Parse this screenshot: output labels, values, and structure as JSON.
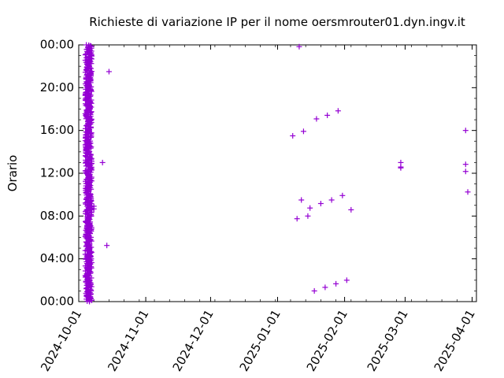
{
  "chart_data": {
    "type": "scatter",
    "title": "Richieste di variazione IP per il nome oersmrouter01.dyn.ingv.it",
    "xlabel": "",
    "ylabel": "Orario",
    "x_type": "date",
    "xlim": [
      "2024-10-01",
      "2025-04-03"
    ],
    "ylim": [
      "00:00",
      "24:00"
    ],
    "x_ticks": [
      "2024-10-01",
      "2024-11-01",
      "2024-12-01",
      "2025-01-01",
      "2025-02-01",
      "2025-03-01",
      "2025-04-01"
    ],
    "y_ticks": [
      "00:00",
      "04:00",
      "08:00",
      "12:00",
      "16:00",
      "20:00",
      "00:00"
    ],
    "marker": "+",
    "color": "#9400d3",
    "grid": false,
    "legend": "none",
    "series": [
      {
        "values": [
          {
            "x": "2024-10-07",
            "y": "08:40"
          },
          {
            "x": "2024-10-07",
            "y": "08:55"
          },
          {
            "x": "2024-10-07",
            "y": "12:55"
          },
          {
            "x": "2024-10-08",
            "y": "08:40"
          },
          {
            "x": "2024-10-08",
            "y": "08:55"
          },
          {
            "x": "2024-10-12",
            "y": "13:00"
          },
          {
            "x": "2024-10-14",
            "y": "05:15"
          },
          {
            "x": "2024-10-15",
            "y": "21:30"
          },
          {
            "x": "2025-01-08",
            "y": "15:30"
          },
          {
            "x": "2025-01-10",
            "y": "07:45"
          },
          {
            "x": "2025-01-11",
            "y": "23:50"
          },
          {
            "x": "2025-01-12",
            "y": "09:30"
          },
          {
            "x": "2025-01-13",
            "y": "15:55"
          },
          {
            "x": "2025-01-15",
            "y": "08:00"
          },
          {
            "x": "2025-01-16",
            "y": "08:45"
          },
          {
            "x": "2025-01-18",
            "y": "01:00"
          },
          {
            "x": "2025-01-19",
            "y": "17:05"
          },
          {
            "x": "2025-01-21",
            "y": "09:10"
          },
          {
            "x": "2025-01-23",
            "y": "01:20"
          },
          {
            "x": "2025-01-24",
            "y": "17:25"
          },
          {
            "x": "2025-01-26",
            "y": "09:30"
          },
          {
            "x": "2025-01-28",
            "y": "01:40"
          },
          {
            "x": "2025-01-29",
            "y": "17:50"
          },
          {
            "x": "2025-01-31",
            "y": "09:55"
          },
          {
            "x": "2025-02-02",
            "y": "02:00"
          },
          {
            "x": "2025-02-04",
            "y": "08:35"
          },
          {
            "x": "2025-02-27",
            "y": "12:30"
          },
          {
            "x": "2025-02-27",
            "y": "12:35"
          },
          {
            "x": "2025-02-27",
            "y": "13:00"
          },
          {
            "x": "2025-03-29",
            "y": "16:00"
          },
          {
            "x": "2025-03-29",
            "y": "12:50"
          },
          {
            "x": "2025-03-29",
            "y": "12:10"
          },
          {
            "x": "2025-03-30",
            "y": "10:15"
          }
        ],
        "dense_block": {
          "x_start": "2024-10-04",
          "x_end": "2024-10-07",
          "y_start": "00:00",
          "y_end": "24:00",
          "count": 620
        }
      }
    ]
  }
}
